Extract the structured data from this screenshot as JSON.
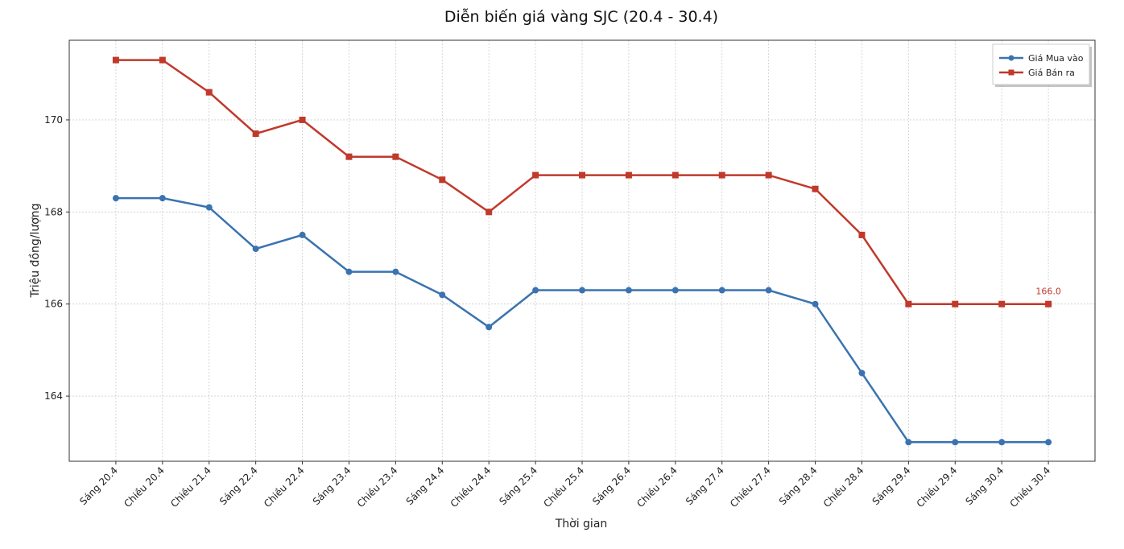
{
  "chart_data": {
    "type": "line",
    "title": "Diễn biến giá vàng SJC (20.4 - 30.4)",
    "xlabel": "Thời gian",
    "ylabel": "Triệu đồng/lượng",
    "ylim": [
      162.585,
      171.73
    ],
    "yticks": [
      164,
      166,
      168,
      170
    ],
    "grid": true,
    "legend_position": "top-right",
    "categories": [
      "Sáng 20.4",
      "Chiều 20.4",
      "Chiều 21.4",
      "Sáng 22.4",
      "Chiều 22.4",
      "Sáng 23.4",
      "Chiều 23.4",
      "Sáng 24.4",
      "Chiều 24.4",
      "Sáng 25.4",
      "Chiều 25.4",
      "Sáng 26.4",
      "Chiều 26.4",
      "Sáng 27.4",
      "Chiều 27.4",
      "Sáng 28.4",
      "Chiều 28.4",
      "Sáng 29.4",
      "Chiều 29.4",
      "Sáng 30.4",
      "Chiều 30.4"
    ],
    "series": [
      {
        "name": "Giá Mua vào",
        "color": "#3a73b0",
        "marker": "circle",
        "values": [
          168.3,
          168.3,
          168.1,
          167.2,
          167.5,
          166.7,
          166.7,
          166.2,
          165.5,
          166.3,
          166.3,
          166.3,
          166.3,
          166.3,
          166.3,
          166.0,
          164.5,
          163.0,
          163.0,
          163.0,
          163.0
        ]
      },
      {
        "name": "Giá Bán ra",
        "color": "#c0392b",
        "marker": "square",
        "values": [
          171.3,
          171.3,
          170.6,
          169.7,
          170.0,
          169.2,
          169.2,
          168.7,
          168.0,
          168.8,
          168.8,
          168.8,
          168.8,
          168.8,
          168.8,
          168.5,
          167.5,
          166.0,
          166.0,
          166.0,
          166.0
        ]
      }
    ],
    "annotations": [
      {
        "series": "Giá Bán ra",
        "category": "Chiều 30.4",
        "text": "166.0"
      }
    ]
  }
}
